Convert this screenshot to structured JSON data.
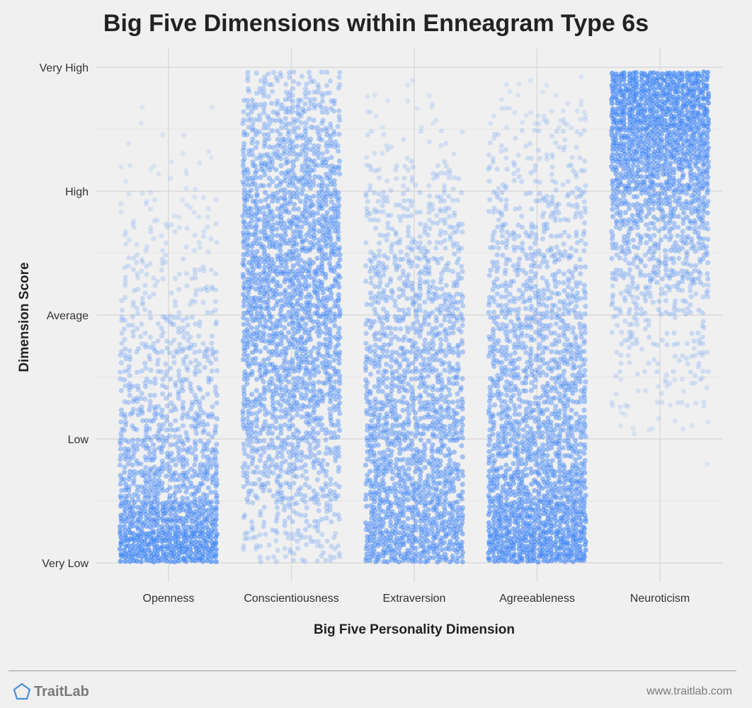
{
  "chart_data": {
    "type": "scatter",
    "title": "Big Five Dimensions within Enneagram Type 6s",
    "xlabel": "Big Five Personality Dimension",
    "ylabel": "Dimension Score",
    "categories": [
      "Openness",
      "Conscientiousness",
      "Extraversion",
      "Agreeableness",
      "Neuroticism"
    ],
    "y_ticks": [
      "Very Low",
      "Low",
      "Average",
      "High",
      "Very High"
    ],
    "ylim": [
      0,
      4
    ],
    "grid": true,
    "point_color": "#3b82f6",
    "series": [
      {
        "category": "Openness",
        "density_bins": [
          1.0,
          0.8,
          0.62,
          0.52,
          0.44,
          0.36,
          0.3,
          0.24,
          0.18,
          0.14,
          0.1,
          0.07,
          0.045,
          0.025,
          0.01,
          0.004
        ],
        "min": 0.0,
        "max": 3.95
      },
      {
        "category": "Conscientiousness",
        "density_bins": [
          0.22,
          0.3,
          0.38,
          0.45,
          0.52,
          0.58,
          0.63,
          0.66,
          0.68,
          0.68,
          0.66,
          0.62,
          0.56,
          0.48,
          0.4,
          0.3
        ],
        "min": 0.0,
        "max": 3.98
      },
      {
        "category": "Extraversion",
        "density_bins": [
          0.75,
          0.7,
          0.66,
          0.62,
          0.58,
          0.54,
          0.5,
          0.46,
          0.4,
          0.34,
          0.28,
          0.22,
          0.16,
          0.1,
          0.06,
          0.03
        ],
        "min": 0.0,
        "max": 3.97
      },
      {
        "category": "Agreeableness",
        "density_bins": [
          0.95,
          0.82,
          0.72,
          0.64,
          0.58,
          0.54,
          0.5,
          0.46,
          0.42,
          0.38,
          0.32,
          0.26,
          0.2,
          0.14,
          0.08,
          0.04
        ],
        "min": 0.0,
        "max": 3.97
      },
      {
        "category": "Neuroticism",
        "density_bins": [
          0.0,
          0.0,
          0.004,
          0.02,
          0.05,
          0.09,
          0.14,
          0.2,
          0.28,
          0.38,
          0.48,
          0.6,
          0.74,
          0.86,
          0.96,
          1.0
        ],
        "min": 0.32,
        "max": 3.98
      }
    ]
  },
  "footer": {
    "brand": "TraitLab",
    "url": "www.traitlab.com",
    "brand_color": "#4a90e2"
  }
}
